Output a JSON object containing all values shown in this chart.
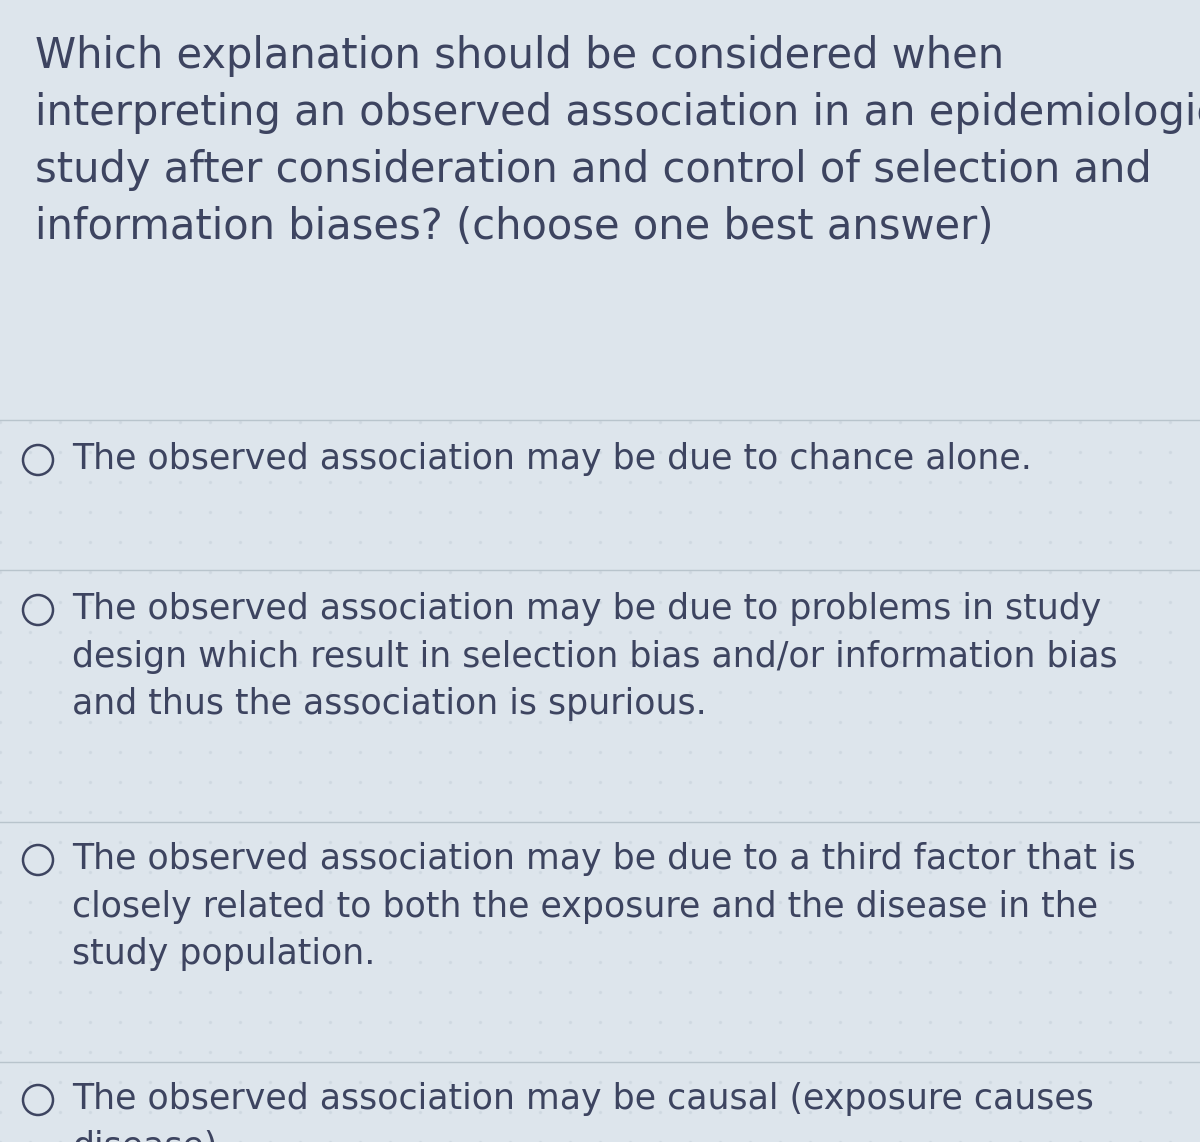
{
  "background_color": "#dde5ec",
  "option_bg_color": "#e8eef3",
  "text_color": "#3d4460",
  "question": "Which explanation should be considered when\ninterpreting an observed association in an epidemiological\nstudy after consideration and control of selection and\ninformation biases? (choose one best answer)",
  "options": [
    "The observed association may be due to chance alone.",
    "The observed association may be due to problems in study\ndesign which result in selection bias and/or information bias\nand thus the association is spurious.",
    "The observed association may be due to a third factor that is\nclosely related to both the exposure and the disease in the\nstudy population.",
    "The observed association may be causal (exposure causes\ndisease)."
  ],
  "question_fontsize": 30,
  "option_fontsize": 25,
  "line_color": "#b8c4cc",
  "figwidth": 12.0,
  "figheight": 11.42,
  "dpi": 100
}
